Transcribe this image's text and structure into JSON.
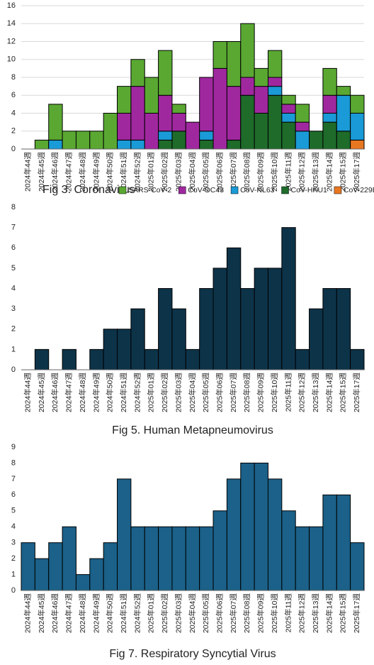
{
  "chart_data": [
    {
      "type": "stacked-bar",
      "title": "Fig 3. Coronavirus",
      "categories": [
        "2024年44週",
        "2024年45週",
        "2024年46週",
        "2024年47週",
        "2024年48週",
        "2024年49週",
        "2024年50週",
        "2024年51週",
        "2024年52週",
        "2025年01週",
        "2025年02週",
        "2025年03週",
        "2025年04週",
        "2025年05週",
        "2025年06週",
        "2025年07週",
        "2025年08週",
        "2025年09週",
        "2025年10週",
        "2025年11週",
        "2025年12週",
        "2025年13週",
        "2025年14週",
        "2025年15週",
        "2025年17週"
      ],
      "series": [
        {
          "name": "SARS-CoV-2",
          "color": "#5aa832",
          "values": [
            0,
            1,
            4,
            2,
            2,
            2,
            4,
            3,
            3,
            4,
            5,
            1,
            0,
            0,
            3,
            5,
            6,
            2,
            3,
            1,
            2,
            0,
            3,
            1,
            2
          ]
        },
        {
          "name": "CoV-OC43",
          "color": "#a0289f",
          "values": [
            0,
            0,
            0,
            0,
            0,
            0,
            0,
            3,
            6,
            4,
            4,
            2,
            3,
            6,
            9,
            6,
            2,
            3,
            1,
            1,
            1,
            0,
            2,
            0,
            0
          ]
        },
        {
          "name": "CoV-NL63",
          "color": "#1a9ad6",
          "values": [
            0,
            0,
            1,
            0,
            0,
            0,
            0,
            1,
            1,
            0,
            1,
            0,
            0,
            1,
            0,
            0,
            0,
            0,
            1,
            1,
            2,
            0,
            1,
            4,
            3
          ]
        },
        {
          "name": "CoV-HKU1",
          "color": "#1e6b2a",
          "values": [
            0,
            0,
            0,
            0,
            0,
            0,
            0,
            0,
            0,
            0,
            1,
            2,
            0,
            1,
            0,
            1,
            6,
            4,
            6,
            3,
            0,
            2,
            3,
            2,
            0
          ]
        },
        {
          "name": "CoV-229E",
          "color": "#e87722",
          "values": [
            0,
            0,
            0,
            0,
            0,
            0,
            0,
            0,
            0,
            0,
            0,
            0,
            0,
            0,
            0,
            0,
            0,
            0,
            0,
            0,
            0,
            0,
            0,
            0,
            1
          ]
        }
      ],
      "ylim": [
        0,
        16
      ],
      "yticks": [
        0,
        2,
        4,
        6,
        8,
        10,
        12,
        14,
        16
      ],
      "grid": true
    },
    {
      "type": "bar",
      "title": "Fig 5. Human Metapneumovirus",
      "categories": [
        "2024年44週",
        "2024年45週",
        "2024年46週",
        "2024年47週",
        "2024年48週",
        "2024年49週",
        "2024年50週",
        "2024年51週",
        "2024年52週",
        "2025年01週",
        "2025年02週",
        "2025年03週",
        "2025年04週",
        "2025年05週",
        "2025年06週",
        "2025年07週",
        "2025年08週",
        "2025年09週",
        "2025年10週",
        "2025年11週",
        "2025年12週",
        "2025年13週",
        "2025年14週",
        "2025年15週",
        "2025年17週"
      ],
      "values": [
        0,
        1,
        0,
        1,
        0,
        1,
        2,
        2,
        3,
        1,
        4,
        3,
        1,
        4,
        5,
        6,
        4,
        5,
        5,
        7,
        1,
        3,
        4,
        4,
        1
      ],
      "color": "#0d3349",
      "ylim": [
        0,
        8
      ],
      "yticks": [
        0,
        1,
        2,
        3,
        4,
        5,
        6,
        7,
        8
      ],
      "grid": false
    },
    {
      "type": "bar",
      "title": "Fig 7. Respiratory Syncytial Virus",
      "categories": [
        "2024年44週",
        "2024年45週",
        "2024年46週",
        "2024年47週",
        "2024年48週",
        "2024年49週",
        "2024年50週",
        "2024年51週",
        "2024年52週",
        "2025年01週",
        "2025年02週",
        "2025年03週",
        "2025年04週",
        "2025年05週",
        "2025年06週",
        "2025年07週",
        "2025年08週",
        "2025年09週",
        "2025年10週",
        "2025年11週",
        "2025年12週",
        "2025年13週",
        "2025年14週",
        "2025年15週",
        "2025年17週"
      ],
      "values": [
        3,
        2,
        3,
        4,
        1,
        2,
        3,
        7,
        4,
        4,
        4,
        4,
        4,
        4,
        5,
        7,
        8,
        8,
        7,
        5,
        4,
        4,
        6,
        6,
        3
      ],
      "color": "#1b6189",
      "ylim": [
        0,
        9
      ],
      "yticks": [
        0,
        1,
        2,
        3,
        4,
        5,
        6,
        7,
        8,
        9
      ],
      "grid": false
    }
  ]
}
